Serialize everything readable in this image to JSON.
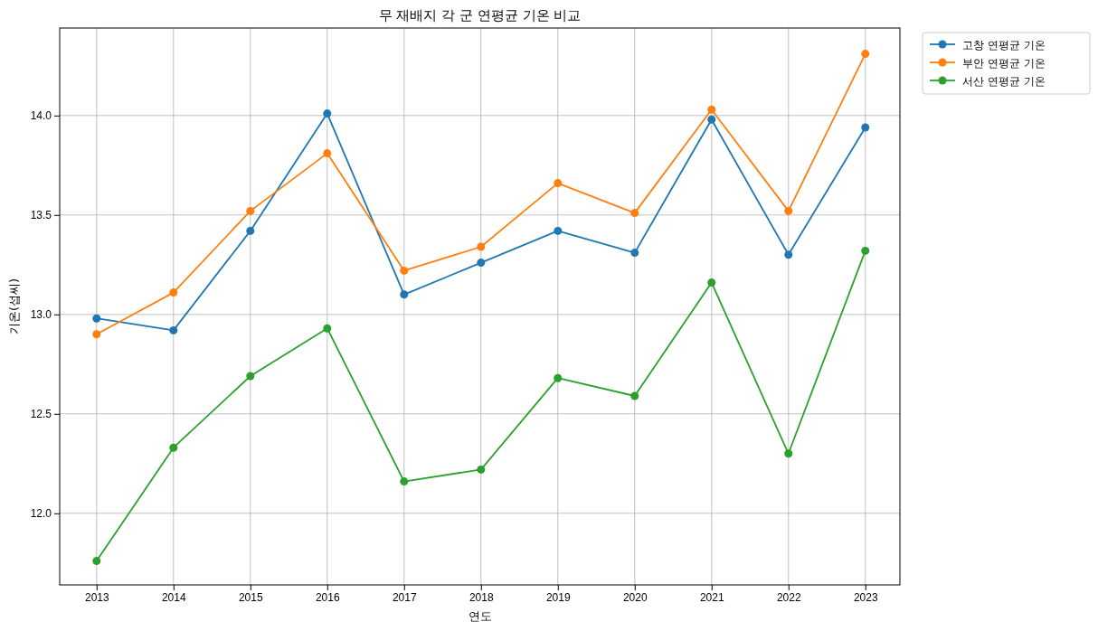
{
  "chart_data": {
    "type": "line",
    "title": "무 재배지 각 군 연평균 기온 비교",
    "xlabel": "연도",
    "ylabel": "기온(섭씨)",
    "x": [
      2013,
      2014,
      2015,
      2016,
      2017,
      2018,
      2019,
      2020,
      2021,
      2022,
      2023
    ],
    "series": [
      {
        "name": "고창 연평균 기온",
        "color": "#1f77b4",
        "values": [
          12.98,
          12.92,
          13.42,
          14.01,
          13.1,
          13.26,
          13.42,
          13.31,
          13.98,
          13.3,
          13.94
        ]
      },
      {
        "name": "부안 연평균 기온",
        "color": "#ff7f0e",
        "values": [
          12.9,
          13.11,
          13.52,
          13.81,
          13.22,
          13.34,
          13.66,
          13.51,
          14.03,
          13.52,
          14.31
        ]
      },
      {
        "name": "서산 연평균 기온",
        "color": "#2ca02c",
        "values": [
          11.76,
          12.33,
          12.69,
          12.93,
          12.16,
          12.22,
          12.68,
          12.59,
          13.16,
          12.3,
          13.32
        ]
      }
    ],
    "xlim": [
      2012.52,
      2023.45
    ],
    "xticks": [
      2013,
      2014,
      2015,
      2016,
      2017,
      2018,
      2019,
      2020,
      2021,
      2022,
      2023
    ],
    "ylim": [
      11.64,
      14.44
    ],
    "yticks": [
      {
        "value": 12,
        "label": "12.0"
      },
      {
        "value": 12.5,
        "label": "12.5"
      },
      {
        "value": 13,
        "label": "13.0"
      },
      {
        "value": 13.5,
        "label": "13.5"
      },
      {
        "value": 14,
        "label": "14.0"
      }
    ],
    "grid": true,
    "legend": "top right",
    "marker": "circle",
    "line_style": "solid"
  }
}
